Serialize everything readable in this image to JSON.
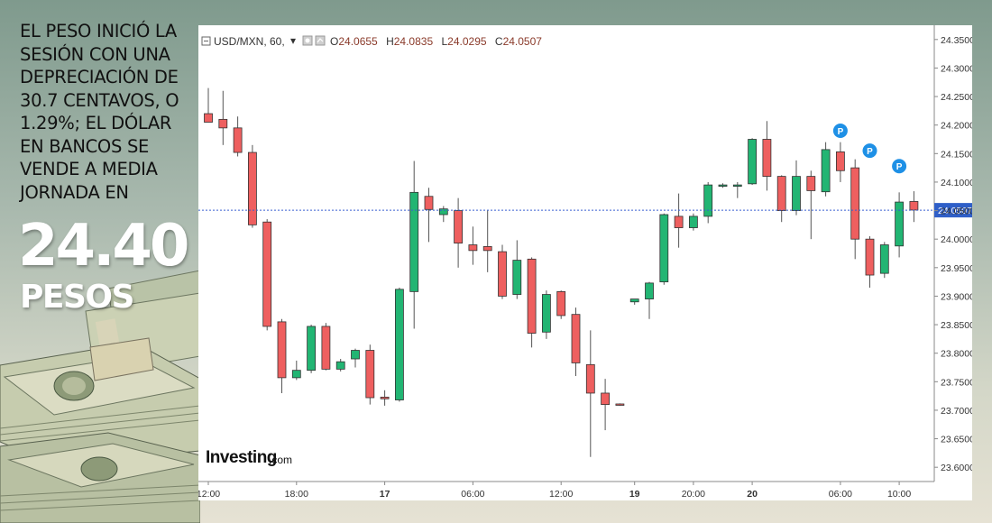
{
  "headline": {
    "lines": [
      "EL PESO INICIÓ LA",
      "SESIÓN CON UNA",
      "DEPRECIACIÓN DE",
      "30.7 CENTAVOS, O",
      "1.29%; EL DÓLAR",
      "EN BANCOS SE",
      "VENDE A MEDIA",
      "JORNADA EN"
    ]
  },
  "big_value": "24.40",
  "big_unit": "PESOS",
  "chart_header": {
    "symbol": "USD/MXN, 60,",
    "o_label": "O",
    "o_value": "24.0655",
    "h_label": "H",
    "h_value": "24.0835",
    "l_label": "L",
    "l_value": "24.0295",
    "c_label": "C",
    "c_value": "24.0507"
  },
  "logo": {
    "main": "Investing",
    "suffix": ".com"
  },
  "colors": {
    "up": "#22b573",
    "down": "#ee5f5f",
    "marker": "#1e90e6",
    "price_line": "#3a5fd0"
  },
  "chart_data": {
    "type": "candlestick",
    "title": "USD/MXN, 60,",
    "ylim": [
      23.575,
      24.375
    ],
    "y_ticks": [
      "24.3500",
      "24.3000",
      "24.2500",
      "24.2000",
      "24.1500",
      "24.1000",
      "24.0500",
      "24.0000",
      "23.9500",
      "23.9000",
      "23.8500",
      "23.8000",
      "23.7500",
      "23.7000",
      "23.6500",
      "23.6000"
    ],
    "x_ticks": [
      {
        "label": "12:00",
        "index": 0,
        "bold": false
      },
      {
        "label": "18:00",
        "index": 6,
        "bold": false
      },
      {
        "label": "17",
        "index": 12,
        "bold": true
      },
      {
        "label": "06:00",
        "index": 18,
        "bold": false
      },
      {
        "label": "12:00",
        "index": 24,
        "bold": false
      },
      {
        "label": "19",
        "index": 29,
        "bold": true
      },
      {
        "label": "20:00",
        "index": 33,
        "bold": false
      },
      {
        "label": "20",
        "index": 37,
        "bold": true
      },
      {
        "label": "06:00",
        "index": 43,
        "bold": false
      },
      {
        "label": "10:00",
        "index": 47,
        "bold": false
      }
    ],
    "last_price": "24.0507",
    "grid": false,
    "markers": [
      {
        "index": 43,
        "label": "P",
        "y": 24.19
      },
      {
        "index": 45,
        "label": "P",
        "y": 24.155
      },
      {
        "index": 47,
        "label": "P",
        "y": 24.128
      }
    ],
    "candles": [
      {
        "o": 24.22,
        "h": 24.265,
        "l": 24.205,
        "c": 24.205
      },
      {
        "o": 24.21,
        "h": 24.26,
        "l": 24.165,
        "c": 24.195
      },
      {
        "o": 24.195,
        "h": 24.215,
        "l": 24.145,
        "c": 24.152
      },
      {
        "o": 24.152,
        "h": 24.165,
        "l": 24.02,
        "c": 24.025
      },
      {
        "o": 24.03,
        "h": 24.035,
        "l": 23.84,
        "c": 23.847
      },
      {
        "o": 23.855,
        "h": 23.86,
        "l": 23.73,
        "c": 23.757
      },
      {
        "o": 23.757,
        "h": 23.787,
        "l": 23.753,
        "c": 23.77
      },
      {
        "o": 23.77,
        "h": 23.85,
        "l": 23.765,
        "c": 23.847
      },
      {
        "o": 23.847,
        "h": 23.853,
        "l": 23.77,
        "c": 23.772
      },
      {
        "o": 23.772,
        "h": 23.79,
        "l": 23.768,
        "c": 23.785
      },
      {
        "o": 23.79,
        "h": 23.808,
        "l": 23.775,
        "c": 23.805
      },
      {
        "o": 23.805,
        "h": 23.815,
        "l": 23.71,
        "c": 23.722
      },
      {
        "o": 23.723,
        "h": 23.735,
        "l": 23.708,
        "c": 23.72
      },
      {
        "o": 23.718,
        "h": 23.915,
        "l": 23.715,
        "c": 23.912
      },
      {
        "o": 23.908,
        "h": 24.137,
        "l": 23.843,
        "c": 24.082
      },
      {
        "o": 24.075,
        "h": 24.09,
        "l": 23.995,
        "c": 24.052
      },
      {
        "o": 24.043,
        "h": 24.058,
        "l": 24.03,
        "c": 24.053
      },
      {
        "o": 24.05,
        "h": 24.072,
        "l": 23.95,
        "c": 23.993
      },
      {
        "o": 23.99,
        "h": 24.022,
        "l": 23.955,
        "c": 23.98
      },
      {
        "o": 23.987,
        "h": 24.05,
        "l": 23.942,
        "c": 23.98
      },
      {
        "o": 23.978,
        "h": 23.99,
        "l": 23.895,
        "c": 23.9
      },
      {
        "o": 23.903,
        "h": 23.998,
        "l": 23.895,
        "c": 23.963
      },
      {
        "o": 23.965,
        "h": 23.968,
        "l": 23.81,
        "c": 23.835
      },
      {
        "o": 23.837,
        "h": 23.91,
        "l": 23.825,
        "c": 23.903
      },
      {
        "o": 23.908,
        "h": 23.91,
        "l": 23.86,
        "c": 23.866
      },
      {
        "o": 23.868,
        "h": 23.88,
        "l": 23.76,
        "c": 23.783
      },
      {
        "o": 23.78,
        "h": 23.84,
        "l": 23.618,
        "c": 23.73
      },
      {
        "o": 23.73,
        "h": 23.755,
        "l": 23.665,
        "c": 23.71
      },
      {
        "o": 23.711,
        "h": 23.712,
        "l": 23.708,
        "c": 23.709
      },
      {
        "o": 23.89,
        "h": 23.895,
        "l": 23.885,
        "c": 23.895
      },
      {
        "o": 23.895,
        "h": 23.925,
        "l": 23.86,
        "c": 23.923
      },
      {
        "o": 23.925,
        "h": 24.045,
        "l": 23.92,
        "c": 24.043
      },
      {
        "o": 24.04,
        "h": 24.08,
        "l": 23.985,
        "c": 24.02
      },
      {
        "o": 24.02,
        "h": 24.045,
        "l": 24.015,
        "c": 24.04
      },
      {
        "o": 24.04,
        "h": 24.1,
        "l": 24.028,
        "c": 24.095
      },
      {
        "o": 24.095,
        "h": 24.098,
        "l": 24.09,
        "c": 24.095
      },
      {
        "o": 24.094,
        "h": 24.1,
        "l": 24.072,
        "c": 24.095
      },
      {
        "o": 24.097,
        "h": 24.177,
        "l": 24.095,
        "c": 24.175
      },
      {
        "o": 24.175,
        "h": 24.207,
        "l": 24.085,
        "c": 24.11
      },
      {
        "o": 24.11,
        "h": 24.112,
        "l": 24.03,
        "c": 24.05
      },
      {
        "o": 24.05,
        "h": 24.138,
        "l": 24.042,
        "c": 24.11
      },
      {
        "o": 24.11,
        "h": 24.12,
        "l": 24.0,
        "c": 24.085
      },
      {
        "o": 24.083,
        "h": 24.17,
        "l": 24.075,
        "c": 24.157
      },
      {
        "o": 24.153,
        "h": 24.17,
        "l": 24.1,
        "c": 24.12
      },
      {
        "o": 24.125,
        "h": 24.14,
        "l": 23.965,
        "c": 24.0
      },
      {
        "o": 24.0,
        "h": 24.005,
        "l": 23.915,
        "c": 23.937
      },
      {
        "o": 23.94,
        "h": 23.995,
        "l": 23.932,
        "c": 23.99
      },
      {
        "o": 23.988,
        "h": 24.082,
        "l": 23.968,
        "c": 24.065
      },
      {
        "o": 24.066,
        "h": 24.084,
        "l": 24.03,
        "c": 24.051
      }
    ]
  }
}
